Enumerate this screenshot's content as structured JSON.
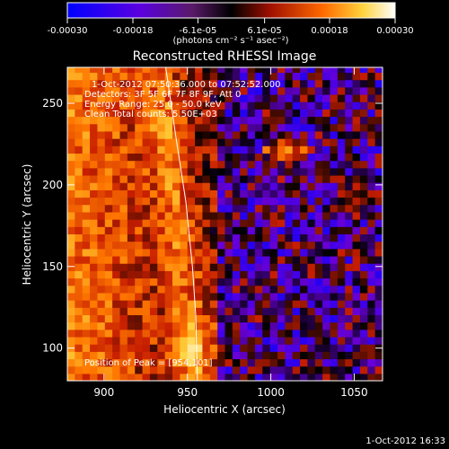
{
  "colorbar": {
    "tick_labels": [
      "-0.00030",
      "-0.00018",
      "-6.1e-05",
      "6.1e-05",
      "0.00018",
      "0.00030"
    ],
    "tick_values": [
      -0.0003,
      -0.00018,
      -6.1e-05,
      6.1e-05,
      0.00018,
      0.0003
    ],
    "range": [
      -0.0003,
      0.0003
    ],
    "units": "(photons cm⁻² s⁻¹ asec⁻²)"
  },
  "chart_data": {
    "type": "heatmap",
    "title": "Reconstructed RHESSI Image",
    "xlabel": "Heliocentric X (arcsec)",
    "ylabel": "Heliocentric Y (arcsec)",
    "xlim": [
      878,
      1067
    ],
    "ylim": [
      80,
      272
    ],
    "x_ticks": [
      900,
      950,
      1000,
      1050
    ],
    "y_ticks": [
      100,
      150,
      200,
      250
    ],
    "colormap": [
      "#0000ff",
      "#6a00d8",
      "#000000",
      "#c81e00",
      "#ff7800",
      "#ffd23c",
      "#ffffff"
    ],
    "peak_position": [
      954,
      101
    ],
    "limb_line": [
      [
        937,
        272
      ],
      [
        943,
        230
      ],
      [
        949,
        190
      ],
      [
        953,
        150
      ],
      [
        955,
        120
      ],
      [
        956,
        80
      ]
    ]
  },
  "annotations": {
    "time_range": "1-Oct-2012 07:50:36.000 to 07:52:52.000",
    "detectors": "Detectors: 3F 5F 6F 7F 8F 9F, Att 0",
    "energy_range": "Energy Range: 25.0 - 50.0 keV",
    "clean_counts": "Clean     Total counts: 5.50E+03",
    "peak": "Position of Peak = [954,101]"
  },
  "footer": {
    "timestamp": "1-Oct-2012 16:33"
  }
}
